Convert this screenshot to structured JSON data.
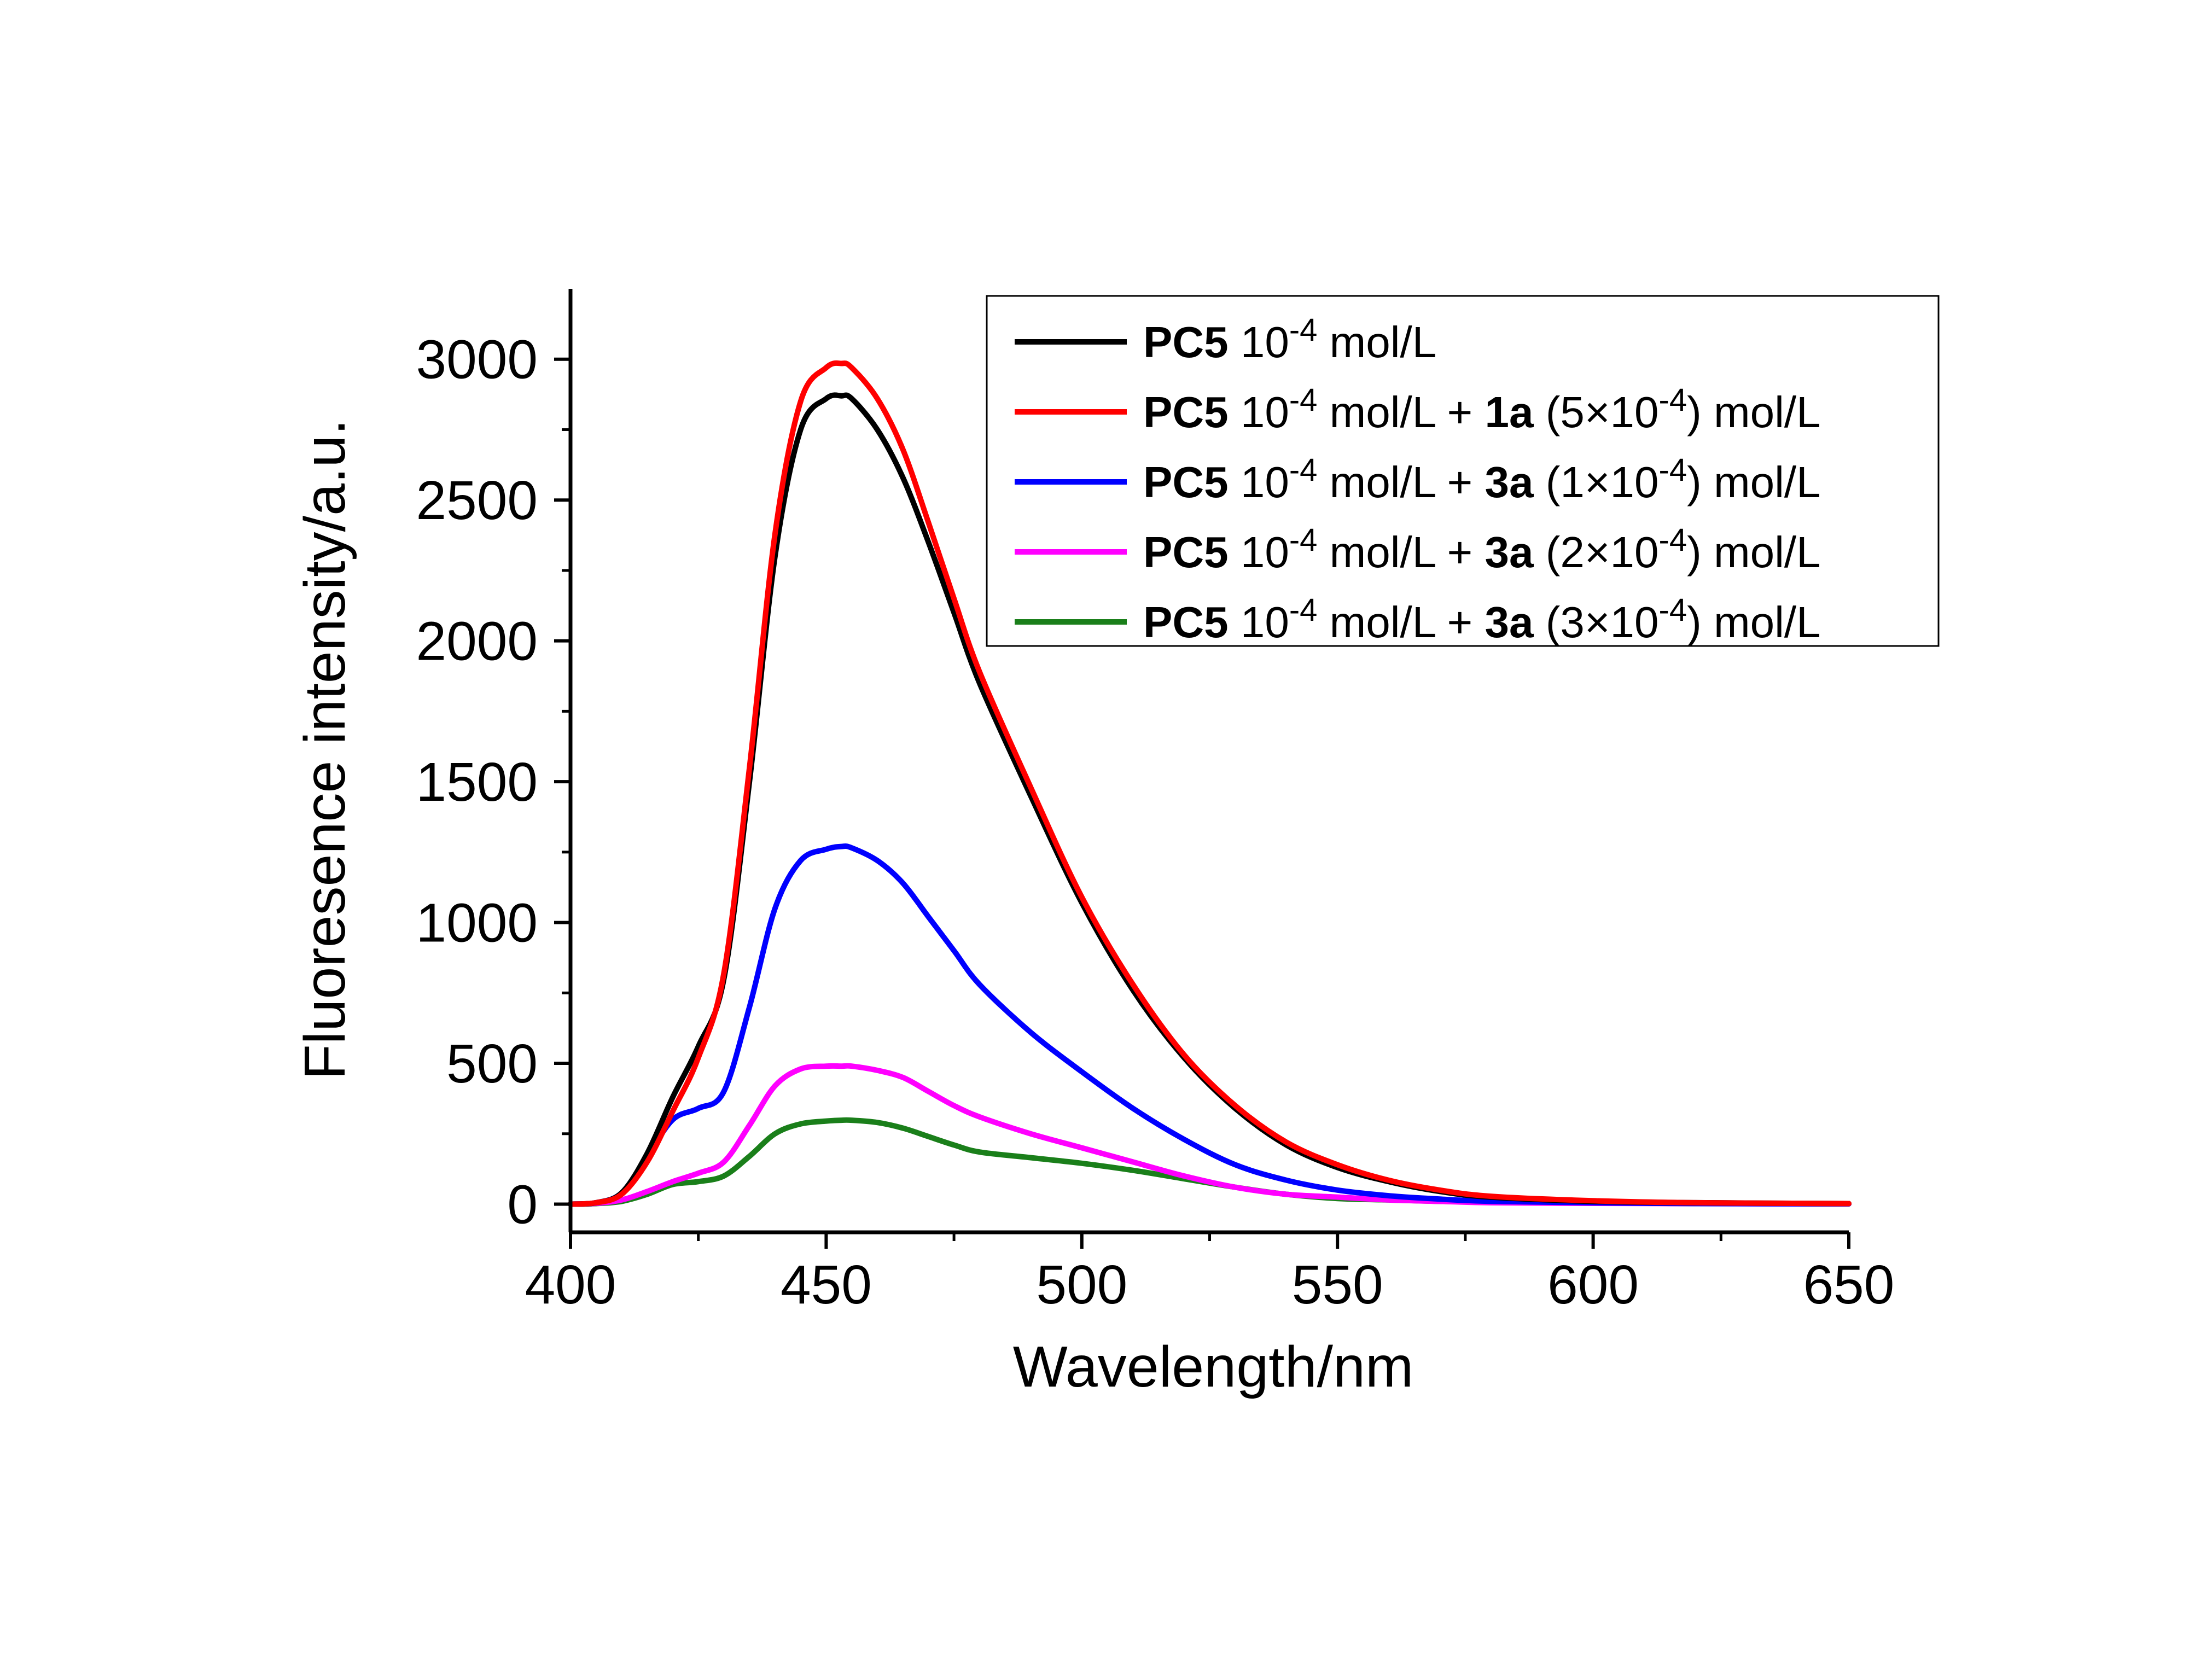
{
  "chart_data": {
    "type": "line",
    "title": "",
    "xlabel": "Wavelength/nm",
    "ylabel": "Fluoresence intensity/a.u.",
    "xlim": [
      400,
      650
    ],
    "ylim": [
      -100,
      3250
    ],
    "x_ticks": [
      400,
      450,
      500,
      550,
      600,
      650
    ],
    "y_ticks": [
      0,
      500,
      1000,
      1500,
      2000,
      2500,
      3000
    ],
    "x_tick_labels": [
      "400",
      "450",
      "500",
      "550",
      "600",
      "650"
    ],
    "y_tick_labels": [
      "0",
      "500",
      "1000",
      "1500",
      "2000",
      "2500",
      "3000"
    ],
    "grid": false,
    "legend_position": "top-right",
    "x": [
      400,
      405,
      410,
      415,
      420,
      425,
      430,
      435,
      440,
      445,
      450,
      453,
      455,
      460,
      465,
      470,
      475,
      480,
      490,
      500,
      510,
      520,
      530,
      540,
      550,
      560,
      570,
      580,
      600,
      620,
      650
    ],
    "series": [
      {
        "legend": {
          "bold": "PC5",
          "text": " 10",
          "sup1": "-4",
          "tail": " mol/L",
          "extra_bold": "",
          "extra_pre": "",
          "extra_sup": "",
          "extra_post": ""
        },
        "color": "#000000",
        "values": [
          0,
          5,
          40,
          180,
          380,
          560,
          800,
          1500,
          2300,
          2750,
          2860,
          2870,
          2860,
          2750,
          2580,
          2350,
          2100,
          1850,
          1450,
          1070,
          760,
          520,
          340,
          210,
          130,
          80,
          45,
          25,
          10,
          5,
          2
        ]
      },
      {
        "legend": {
          "bold": "PC5",
          "text": " 10",
          "sup1": "-4",
          "tail": " mol/L + ",
          "extra_bold": "1a",
          "extra_pre": " (5×10",
          "extra_sup": "-4",
          "extra_post": ") mol/L"
        },
        "color": "#ff0000",
        "values": [
          0,
          5,
          35,
          150,
          330,
          520,
          820,
          1550,
          2380,
          2850,
          2970,
          2985,
          2970,
          2860,
          2680,
          2420,
          2150,
          1890,
          1480,
          1090,
          780,
          530,
          350,
          220,
          140,
          85,
          50,
          28,
          12,
          5,
          2
        ]
      },
      {
        "legend": {
          "bold": "PC5",
          "text": " 10",
          "sup1": "-4",
          "tail": " mol/L + ",
          "extra_bold": "3a",
          "extra_pre": " (1×10",
          "extra_sup": "-4",
          "extra_post": ") mol/L"
        },
        "color": "#0000ff",
        "values": [
          0,
          5,
          40,
          170,
          300,
          340,
          400,
          700,
          1050,
          1220,
          1260,
          1270,
          1265,
          1220,
          1140,
          1020,
          900,
          780,
          610,
          470,
          340,
          230,
          140,
          85,
          50,
          30,
          18,
          10,
          5,
          2,
          1
        ]
      },
      {
        "legend": {
          "bold": "PC5",
          "text": " 10",
          "sup1": "-4",
          "tail": " mol/L + ",
          "extra_bold": "3a",
          "extra_pre": " (2×10",
          "extra_sup": "-4",
          "extra_post": ") mol/L"
        },
        "color": "#ff00ff",
        "values": [
          0,
          3,
          15,
          45,
          80,
          110,
          150,
          280,
          420,
          480,
          490,
          490,
          490,
          475,
          450,
          400,
          350,
          310,
          250,
          200,
          150,
          100,
          60,
          35,
          25,
          15,
          10,
          5,
          3,
          2,
          1
        ]
      },
      {
        "legend": {
          "bold": "PC5",
          "text": " 10",
          "sup1": "-4",
          "tail": " mol/L + ",
          "extra_bold": "3a",
          "extra_pre": " (3×10",
          "extra_sup": "-4",
          "extra_post": ") mol/L"
        },
        "color": "#1a7f1a",
        "values": [
          0,
          2,
          10,
          35,
          70,
          80,
          100,
          170,
          250,
          285,
          295,
          298,
          298,
          290,
          270,
          240,
          210,
          185,
          165,
          145,
          120,
          90,
          60,
          35,
          20,
          15,
          10,
          8,
          5,
          3,
          2
        ]
      }
    ]
  }
}
